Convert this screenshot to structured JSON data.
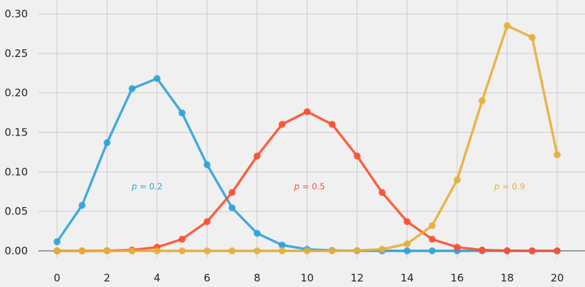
{
  "chart_data": {
    "type": "line",
    "title": "",
    "xlabel": "",
    "ylabel": "",
    "xlim": [
      -0.6,
      21.0
    ],
    "ylim": [
      -0.01,
      0.3
    ],
    "x_ticks": [
      0,
      2,
      4,
      6,
      8,
      10,
      12,
      14,
      16,
      18,
      20
    ],
    "y_ticks": [
      0.0,
      0.05,
      0.1,
      0.15,
      0.2,
      0.25,
      0.3
    ],
    "y_tick_labels": [
      "0.00",
      "0.05",
      "0.10",
      "0.15",
      "0.20",
      "0.25",
      "0.30"
    ],
    "grid": true,
    "x": [
      0,
      1,
      2,
      3,
      4,
      5,
      6,
      7,
      8,
      9,
      10,
      11,
      12,
      13,
      14,
      15,
      16,
      17,
      18,
      19,
      20
    ],
    "series": [
      {
        "annotation": "p = 0.2",
        "color": "#30a2da",
        "annotation_at": [
          3.6,
          0.078
        ],
        "values": [
          0.0115,
          0.0576,
          0.1369,
          0.2054,
          0.2182,
          0.1746,
          0.1091,
          0.0545,
          0.0222,
          0.0074,
          0.002,
          0.0005,
          0.0001,
          0.0,
          0.0,
          0.0,
          0.0,
          0.0,
          0.0,
          0.0,
          0.0
        ]
      },
      {
        "annotation": "p = 0.5",
        "color": "#fc4f30",
        "annotation_at": [
          10.1,
          0.078
        ],
        "values": [
          0.0,
          0.0,
          0.0002,
          0.0011,
          0.0046,
          0.0148,
          0.037,
          0.0739,
          0.1201,
          0.1602,
          0.1762,
          0.1602,
          0.1201,
          0.0739,
          0.037,
          0.0148,
          0.0046,
          0.0011,
          0.0002,
          0.0,
          0.0
        ]
      },
      {
        "annotation": "p = 0.9",
        "color": "#e5ae38",
        "annotation_at": [
          18.1,
          0.078
        ],
        "values": [
          0.0,
          0.0,
          0.0,
          0.0,
          0.0,
          0.0,
          0.0,
          0.0,
          0.0,
          0.0,
          0.0,
          0.0,
          0.0004,
          0.002,
          0.0089,
          0.0319,
          0.0898,
          0.1901,
          0.2852,
          0.2702,
          0.1216
        ]
      }
    ]
  }
}
